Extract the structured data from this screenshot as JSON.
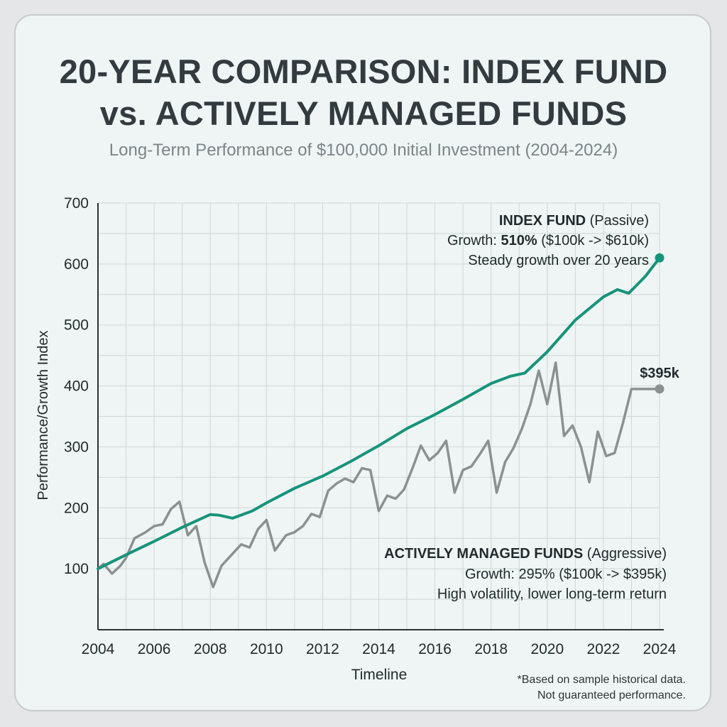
{
  "title_line1": "20-YEAR COMPARISON: INDEX FUND",
  "title_line2": "vs. ACTIVELY MANAGED FUNDS",
  "subtitle": "Long-Term Performance of $100,000 Initial Investment (2004-2024)",
  "footnote_line1": "*Based on sample historical data.",
  "footnote_line2": "Not guaranteed performance.",
  "colors": {
    "index": "#17937a",
    "active": "#8a9190",
    "grid": "#cfd6d6",
    "text": "#222a2d"
  },
  "chart_data": {
    "type": "line",
    "xlabel": "Timeline",
    "ylabel": "Performance/Growth Index",
    "xlim": [
      2004,
      2024
    ],
    "ylim": [
      0,
      700
    ],
    "xticks": [
      2004,
      2006,
      2008,
      2010,
      2012,
      2014,
      2016,
      2018,
      2020,
      2022,
      2024
    ],
    "yticks": [
      100,
      200,
      300,
      400,
      500,
      600,
      700
    ],
    "grid": true,
    "series": [
      {
        "name": "INDEX FUND (Passive)",
        "color": "#17937a",
        "x": [
          2004,
          2005,
          2006,
          2007,
          2008,
          2008.3,
          2008.8,
          2009.5,
          2010,
          2011,
          2012,
          2013,
          2014,
          2015,
          2016,
          2017,
          2018,
          2018.7,
          2019.2,
          2020,
          2021,
          2022,
          2022.5,
          2022.9,
          2023.5,
          2024
        ],
        "y": [
          100,
          123,
          145,
          168,
          189,
          188,
          183,
          195,
          208,
          232,
          252,
          276,
          302,
          330,
          353,
          378,
          404,
          416,
          421,
          456,
          508,
          546,
          558,
          552,
          580,
          610
        ]
      },
      {
        "name": "ACTIVELY MANAGED FUNDS (Aggressive)",
        "color": "#8a9190",
        "x": [
          2004,
          2004.2,
          2004.5,
          2004.8,
          2005,
          2005.3,
          2005.7,
          2006,
          2006.3,
          2006.6,
          2006.9,
          2007.2,
          2007.5,
          2007.8,
          2008.1,
          2008.4,
          2008.8,
          2009.1,
          2009.4,
          2009.7,
          2010,
          2010.3,
          2010.7,
          2011,
          2011.3,
          2011.6,
          2011.9,
          2012.2,
          2012.5,
          2012.8,
          2013.1,
          2013.4,
          2013.7,
          2014,
          2014.3,
          2014.6,
          2014.9,
          2015.2,
          2015.5,
          2015.8,
          2016.1,
          2016.4,
          2016.7,
          2017,
          2017.3,
          2017.6,
          2017.9,
          2018.2,
          2018.5,
          2018.8,
          2019.1,
          2019.4,
          2019.7,
          2020,
          2020.3,
          2020.6,
          2020.9,
          2021.2,
          2021.5,
          2021.8,
          2022.1,
          2022.4,
          2022.7,
          2023,
          2023.3,
          2023.6,
          2024
        ],
        "y": [
          100,
          108,
          92,
          105,
          118,
          150,
          160,
          170,
          173,
          198,
          210,
          155,
          170,
          110,
          70,
          105,
          125,
          140,
          135,
          165,
          180,
          130,
          155,
          160,
          170,
          190,
          185,
          228,
          240,
          248,
          242,
          265,
          262,
          195,
          220,
          215,
          230,
          265,
          302,
          278,
          290,
          310,
          225,
          262,
          268,
          288,
          310,
          225,
          275,
          298,
          330,
          370,
          425,
          370,
          438,
          318,
          335,
          300,
          242,
          325,
          285,
          290,
          340,
          395,
          395,
          395,
          395
        ],
        "end_label": "$395k"
      }
    ],
    "annotations": {
      "index_title": "INDEX FUND",
      "index_title_suffix": " (Passive)",
      "index_growth_prefix": "Growth: ",
      "index_growth_value": "510%",
      "index_growth_suffix": " ($100k -> $610k)",
      "index_note": "Steady growth over 20 years",
      "active_title": "ACTIVELY MANAGED FUNDS",
      "active_title_suffix": " (Aggressive)",
      "active_growth": "Growth: 295% ($100k -> $395k)",
      "active_note": "High volatility, lower long-term return"
    }
  }
}
